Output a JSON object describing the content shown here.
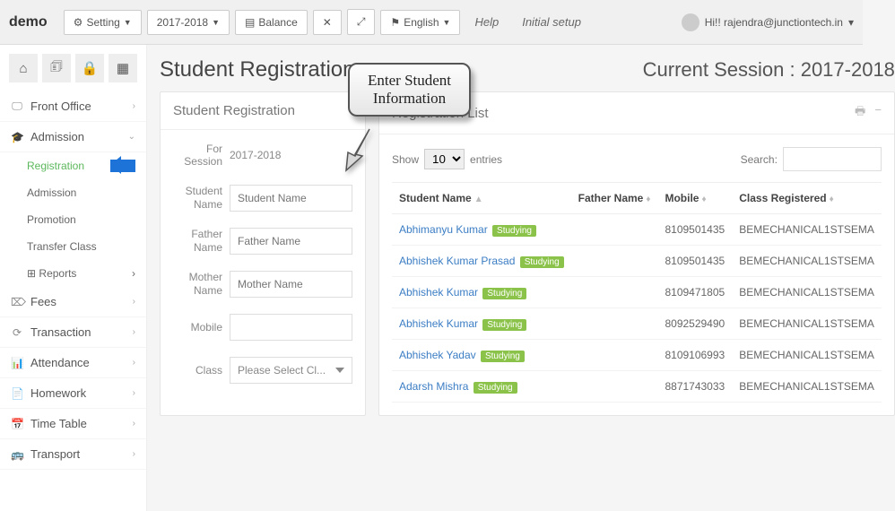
{
  "brand": "demo",
  "topbar": {
    "setting": "Setting",
    "session": "2017-2018",
    "balance": "Balance",
    "lang": "English",
    "help": "Help",
    "initial": "Initial setup"
  },
  "user": {
    "greeting": "Hi!! rajendra@junctiontech.in"
  },
  "sidebar": {
    "items": [
      {
        "icon": "🖵",
        "label": "Front Office",
        "chev": "›"
      },
      {
        "icon": "🎓",
        "label": "Admission",
        "chev": "⌄",
        "expanded": true,
        "subs": [
          {
            "label": "Registration",
            "active": true
          },
          {
            "label": "Admission"
          },
          {
            "label": "Promotion"
          },
          {
            "label": "Transfer Class"
          },
          {
            "label": "Reports",
            "icon": "⊞",
            "chev": "›"
          }
        ]
      },
      {
        "icon": "⌦",
        "label": "Fees",
        "chev": "›"
      },
      {
        "icon": "⟳",
        "label": "Transaction",
        "chev": "›"
      },
      {
        "icon": "📊",
        "label": "Attendance",
        "chev": "›"
      },
      {
        "icon": "📄",
        "label": "Homework",
        "chev": "›"
      },
      {
        "icon": "📅",
        "label": "Time Table",
        "chev": "›"
      },
      {
        "icon": "🚌",
        "label": "Transport",
        "chev": "›"
      }
    ]
  },
  "page": {
    "title": "Student Registration",
    "session_prefix": "Current Session : ",
    "session_value": "2017-2018"
  },
  "callout": {
    "line1": "Enter Student",
    "line2": "Information"
  },
  "form_panel": {
    "title": "Student Registration",
    "session_label": "For Session",
    "session_value": "2017-2018",
    "fields": {
      "student_label": "Student Name",
      "student_ph": "Student Name",
      "father_label": "Father Name",
      "father_ph": "Father Name",
      "mother_label": "Mother Name",
      "mother_ph": "Mother Name",
      "mobile_label": "Mobile",
      "mobile_ph": "",
      "class_label": "Class",
      "class_ph": "Please Select Cl..."
    }
  },
  "list_panel": {
    "title": "Registration List",
    "show_prefix": "Show",
    "show_value": "10",
    "show_suffix": "entries",
    "search_label": "Search:",
    "columns": [
      "Student Name",
      "Father Name",
      "Mobile",
      "Class Registered"
    ],
    "badge": "Studying",
    "rows": [
      {
        "name": "Abhimanyu Kumar",
        "father": "",
        "mobile": "8109501435",
        "class": "BEMECHANICAL1STSEMA"
      },
      {
        "name": "Abhishek Kumar Prasad",
        "father": "",
        "mobile": "8109501435",
        "class": "BEMECHANICAL1STSEMA"
      },
      {
        "name": "Abhishek Kumar",
        "father": "",
        "mobile": "8109471805",
        "class": "BEMECHANICAL1STSEMA"
      },
      {
        "name": "Abhishek Kumar",
        "father": "",
        "mobile": "8092529490",
        "class": "BEMECHANICAL1STSEMA"
      },
      {
        "name": "Abhishek Yadav",
        "father": "",
        "mobile": "8109106993",
        "class": "BEMECHANICAL1STSEMA"
      },
      {
        "name": "Adarsh Mishra",
        "father": "",
        "mobile": "8871743033",
        "class": "BEMECHANICAL1STSEMA"
      }
    ]
  }
}
